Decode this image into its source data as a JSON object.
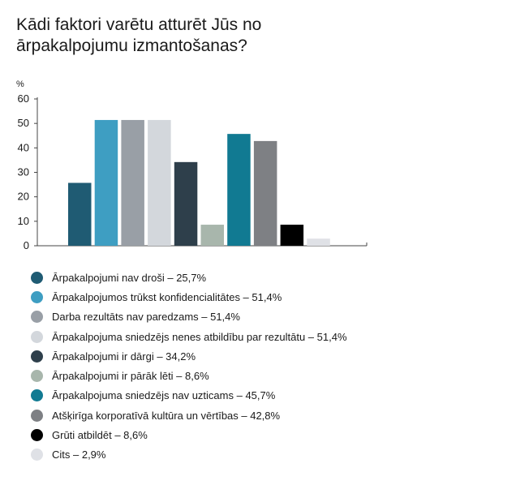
{
  "chart_data": {
    "type": "bar",
    "title": "Kādi faktori varētu atturēt Jūs no ārpakalpojumu izmantošanas?",
    "title_lines": [
      "Kādi faktori varētu atturēt Jūs no",
      "ārpakalpojumu izmantošanas?"
    ],
    "ylabel": "%",
    "xlabel": "",
    "ylim": [
      0,
      60
    ],
    "yticks": [
      0,
      10,
      20,
      30,
      40,
      50,
      60
    ],
    "grid": false,
    "legend_position": "bottom-left",
    "categories": [
      "Ārpakalpojumi nav droši",
      "Ārpakalpojumos trūkst konfidencialitātes",
      "Darba rezultāts nav paredzams",
      "Ārpakalpojuma sniedzējs nenes atbildību par rezultātu",
      "Ārpakalpojumi ir dārgi",
      "Ārpakalpojumi ir pārāk lēti",
      "Ārpakalpojuma sniedzējs nav uzticams",
      "Atšķirīga korporatīvā kultūra un vērtības",
      "Grūti atbildēt",
      "Cits"
    ],
    "values": [
      25.7,
      51.4,
      51.4,
      51.4,
      34.2,
      8.6,
      45.7,
      42.8,
      8.6,
      2.9
    ],
    "value_labels": [
      "25,7%",
      "51,4%",
      "51,4%",
      "51,4%",
      "34,2%",
      "8,6%",
      "45,7%",
      "42,8%",
      "8,6%",
      "2,9%"
    ],
    "colors": [
      "#1f5b73",
      "#3e9ec2",
      "#999fa6",
      "#d3d7dc",
      "#2e3f4b",
      "#a8b6ac",
      "#117a92",
      "#7e8084",
      "#000000",
      "#dfe1e6"
    ]
  }
}
